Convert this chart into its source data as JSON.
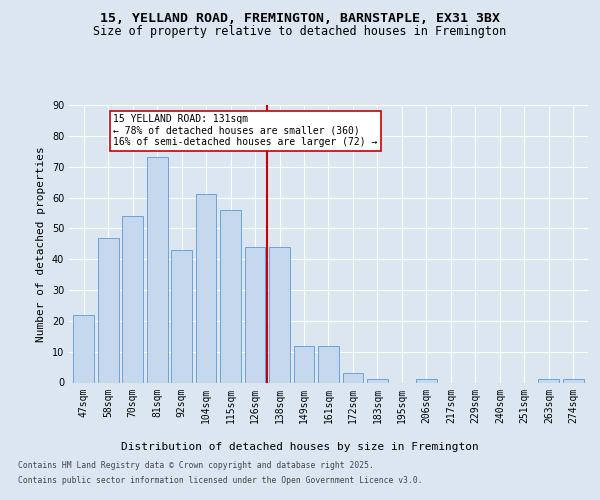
{
  "title1": "15, YELLAND ROAD, FREMINGTON, BARNSTAPLE, EX31 3BX",
  "title2": "Size of property relative to detached houses in Fremington",
  "xlabel": "Distribution of detached houses by size in Fremington",
  "ylabel": "Number of detached properties",
  "categories": [
    "47sqm",
    "58sqm",
    "70sqm",
    "81sqm",
    "92sqm",
    "104sqm",
    "115sqm",
    "126sqm",
    "138sqm",
    "149sqm",
    "161sqm",
    "172sqm",
    "183sqm",
    "195sqm",
    "206sqm",
    "217sqm",
    "229sqm",
    "240sqm",
    "251sqm",
    "263sqm",
    "274sqm"
  ],
  "values": [
    22,
    47,
    54,
    73,
    43,
    61,
    56,
    44,
    44,
    12,
    12,
    3,
    1,
    0,
    1,
    0,
    0,
    0,
    0,
    1,
    1
  ],
  "bar_color": "#c5d8ed",
  "bar_edge_color": "#5b9bd5",
  "vline_x": 7.5,
  "vline_color": "#cc0000",
  "annotation_text": "15 YELLAND ROAD: 131sqm\n← 78% of detached houses are smaller (360)\n16% of semi-detached houses are larger (72) →",
  "annotation_box_color": "#ffffff",
  "annotation_box_edge": "#cc0000",
  "ylim": [
    0,
    90
  ],
  "yticks": [
    0,
    10,
    20,
    30,
    40,
    50,
    60,
    70,
    80,
    90
  ],
  "bg_color": "#dce6f1",
  "plot_bg_color": "#dce6f1",
  "footer1": "Contains HM Land Registry data © Crown copyright and database right 2025.",
  "footer2": "Contains public sector information licensed under the Open Government Licence v3.0.",
  "title1_fontsize": 9.5,
  "title2_fontsize": 8.5,
  "axis_label_fontsize": 8,
  "tick_fontsize": 7,
  "annot_fontsize": 7,
  "footer_fontsize": 5.8
}
